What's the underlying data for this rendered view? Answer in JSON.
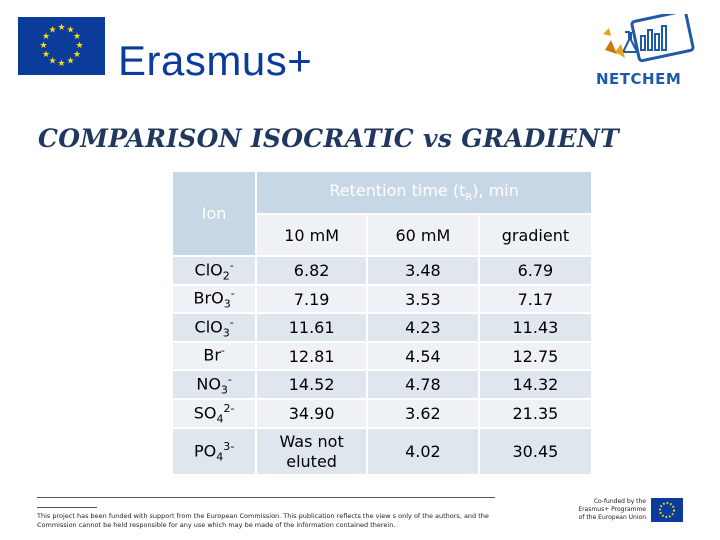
{
  "header": {
    "brand": "Erasmus+",
    "partner_logo_text": "NETCHEM",
    "flag_color": "#0b3c9c",
    "flag_star_color": "#ffdd00"
  },
  "title": "COMPARISON ISOCRATIC vs GRADIENT",
  "table": {
    "ion_header": "Ion",
    "retention_header_pre": "Retention time (t",
    "retention_header_sub": "R",
    "retention_header_post": "), min",
    "subheaders": [
      "10 mM",
      "60 mM",
      "gradient"
    ],
    "rows": [
      {
        "ion_base": "ClO",
        "ion_sub": "2",
        "ion_sup": "-",
        "v1": "6.82",
        "v2": "3.48",
        "v3": "6.79"
      },
      {
        "ion_base": "BrO",
        "ion_sub": "3",
        "ion_sup": "-",
        "v1": "7.19",
        "v2": "3.53",
        "v3": "7.17"
      },
      {
        "ion_base": "ClO",
        "ion_sub": "3",
        "ion_sup": "-",
        "v1": "11.61",
        "v2": "4.23",
        "v3": "11.43"
      },
      {
        "ion_base": "Br",
        "ion_sub": "",
        "ion_sup": "-",
        "v1": "12.81",
        "v2": "4.54",
        "v3": "12.75"
      },
      {
        "ion_base": "NO",
        "ion_sub": "3",
        "ion_sup": "-",
        "v1": "14.52",
        "v2": "4.78",
        "v3": "14.32"
      },
      {
        "ion_base": "SO",
        "ion_sub": "4",
        "ion_sup": "2-",
        "v1": "34.90",
        "v2": "3.62",
        "v3": "21.35"
      },
      {
        "ion_base": "PO",
        "ion_sub": "4",
        "ion_sup": "3-",
        "v1": "Was not eluted",
        "v2": "4.02",
        "v3": "30.45"
      }
    ],
    "header_color": "#c8d7e6",
    "row_color_light": "#eef2f7",
    "row_color_dark": "#dfe6ee"
  },
  "footer": {
    "disclaimer": "This project has been funded with support from the European Commission. This publication reflects the view s only of the authors, and the Commission cannot be held responsible for any use which may be made of the information contained therein.",
    "cofunded": "Co-funded by the Erasmus+ Programme of the European Union"
  }
}
